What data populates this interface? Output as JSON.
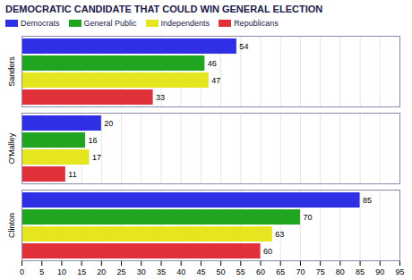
{
  "chart_data": {
    "type": "bar",
    "title": "DEMOCRATIC CANDIDATE THAT COULD WIN GENERAL ELECTION",
    "orientation": "horizontal",
    "categories": [
      "Sanders",
      "O'Malley",
      "Clinton"
    ],
    "series": [
      {
        "name": "Democrats",
        "color": "#2f2fe6",
        "values": [
          54,
          20,
          85
        ]
      },
      {
        "name": "General Public",
        "color": "#1fa51f",
        "values": [
          46,
          16,
          70
        ]
      },
      {
        "name": "Independents",
        "color": "#e6e620",
        "values": [
          47,
          17,
          63
        ]
      },
      {
        "name": "Republicans",
        "color": "#e0303a",
        "values": [
          33,
          11,
          60
        ]
      }
    ],
    "xlim": [
      0,
      95
    ],
    "xticks": [
      0,
      5,
      10,
      15,
      20,
      25,
      30,
      35,
      40,
      45,
      50,
      55,
      60,
      65,
      70,
      75,
      80,
      85,
      90,
      95
    ],
    "grid": true,
    "legend": "top",
    "data_labels": true
  }
}
